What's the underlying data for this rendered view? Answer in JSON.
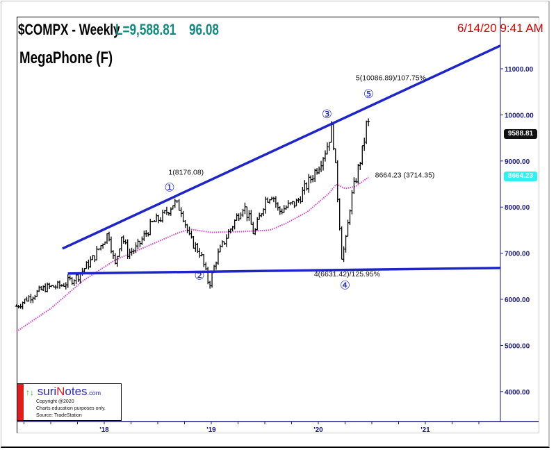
{
  "header": {
    "symbol": "$COMPX - Weekly",
    "last": "L=9,588.81",
    "change": "96.08",
    "timestamp": "6/14/20 9:41 AM",
    "study": "MegaPhone (F)"
  },
  "price_tags": {
    "last": "9588.81",
    "ma": "8664.23"
  },
  "logo": {
    "arrows": "↑↓",
    "brand_a": "suri",
    "brand_n": "N",
    "brand_b": "otes",
    "brand_com": ".com",
    "copyright": "Copyright @2020",
    "disclaimer": "Charts education purposes only.",
    "source": "Source: TradeStation"
  },
  "colors": {
    "price": "#000000",
    "ma": "#d63fd0",
    "trendline": "#1d24c8",
    "axis": "#1a1a80",
    "timestamp": "#e00000",
    "header_value": "#138a7e",
    "ma_tag": "#2ef2f2"
  },
  "chart_data": {
    "type": "line",
    "title": "$COMPX - Weekly",
    "xlabel": "",
    "ylabel": "",
    "xlim": [
      2017.18,
      2021.7
    ],
    "ylim": [
      3400,
      11800
    ],
    "grid": false,
    "y_ticks": [
      "4000.00",
      "5000.00",
      "6000.00",
      "7000.00",
      "8000.00",
      "9000.00",
      "10000.00",
      "11000.00"
    ],
    "y_tick_values": [
      4000,
      5000,
      6000,
      7000,
      8000,
      9000,
      10000,
      11000
    ],
    "x_ticks": [
      "'18",
      "'19",
      "'20",
      "'21"
    ],
    "x_tick_values": [
      2018,
      2019,
      2020,
      2021
    ],
    "series": [
      {
        "name": "$COMPX weekly close",
        "type": "bar-ohlc",
        "points": [
          [
            2017.18,
            5850
          ],
          [
            2017.3,
            6050
          ],
          [
            2017.45,
            6250
          ],
          [
            2017.6,
            6300
          ],
          [
            2017.75,
            6500
          ],
          [
            2017.9,
            6900
          ],
          [
            2018.04,
            7450
          ],
          [
            2018.1,
            6700
          ],
          [
            2018.16,
            7400
          ],
          [
            2018.22,
            7000
          ],
          [
            2018.3,
            7100
          ],
          [
            2018.45,
            7650
          ],
          [
            2018.55,
            7800
          ],
          [
            2018.65,
            8100
          ],
          [
            2018.72,
            7950
          ],
          [
            2018.8,
            7300
          ],
          [
            2018.9,
            7000
          ],
          [
            2018.98,
            6300
          ],
          [
            2019.05,
            6900
          ],
          [
            2019.15,
            7400
          ],
          [
            2019.3,
            8050
          ],
          [
            2019.36,
            7700
          ],
          [
            2019.4,
            7400
          ],
          [
            2019.5,
            8150
          ],
          [
            2019.57,
            8300
          ],
          [
            2019.63,
            7900
          ],
          [
            2019.7,
            8000
          ],
          [
            2019.8,
            8100
          ],
          [
            2019.9,
            8500
          ],
          [
            2020.0,
            8900
          ],
          [
            2020.08,
            9300
          ],
          [
            2020.13,
            9750
          ],
          [
            2020.17,
            8550
          ],
          [
            2020.2,
            7600
          ],
          [
            2020.22,
            6900
          ],
          [
            2020.26,
            7300
          ],
          [
            2020.3,
            8100
          ],
          [
            2020.36,
            8700
          ],
          [
            2020.42,
            9300
          ],
          [
            2020.46,
            9950
          ],
          [
            2020.48,
            9588.81
          ]
        ]
      },
      {
        "name": "Moving average",
        "type": "line",
        "points": [
          [
            2017.18,
            5300
          ],
          [
            2017.5,
            5800
          ],
          [
            2017.8,
            6400
          ],
          [
            2018.1,
            6850
          ],
          [
            2018.4,
            7150
          ],
          [
            2018.7,
            7450
          ],
          [
            2018.8,
            7520
          ],
          [
            2019.0,
            7450
          ],
          [
            2019.3,
            7470
          ],
          [
            2019.55,
            7500
          ],
          [
            2019.7,
            7650
          ],
          [
            2019.9,
            7900
          ],
          [
            2020.1,
            8300
          ],
          [
            2020.17,
            8500
          ],
          [
            2020.25,
            8400
          ],
          [
            2020.35,
            8450
          ],
          [
            2020.48,
            8664.23
          ]
        ]
      }
    ],
    "trendlines": [
      {
        "name": "upper megaphone line",
        "points": [
          [
            2017.61,
            7100
          ],
          [
            2021.7,
            11500
          ]
        ]
      },
      {
        "name": "lower megaphone line",
        "points": [
          [
            2017.66,
            6560
          ],
          [
            2021.7,
            6680
          ]
        ]
      }
    ],
    "annotations": [
      {
        "text": "1(8176.08)",
        "at": [
          2018.6,
          8700
        ]
      },
      {
        "text": "5(10086.89)/107.75%",
        "at": [
          2020.35,
          10750
        ]
      },
      {
        "text": "8664.23 (3714.35)",
        "at": [
          2020.53,
          8640
        ]
      },
      {
        "text": "4(6631.42)/125.95%",
        "at": [
          2019.96,
          6500
        ]
      }
    ],
    "wave_labels": [
      {
        "text": "①",
        "at": [
          2018.61,
          8340
        ]
      },
      {
        "text": "②",
        "at": [
          2018.89,
          6430
        ]
      },
      {
        "text": "③",
        "at": [
          2020.08,
          9930
        ]
      },
      {
        "text": "④",
        "at": [
          2020.25,
          6400
        ]
      },
      {
        "text": "⑤",
        "at": [
          2020.47,
          10370
        ]
      }
    ]
  }
}
